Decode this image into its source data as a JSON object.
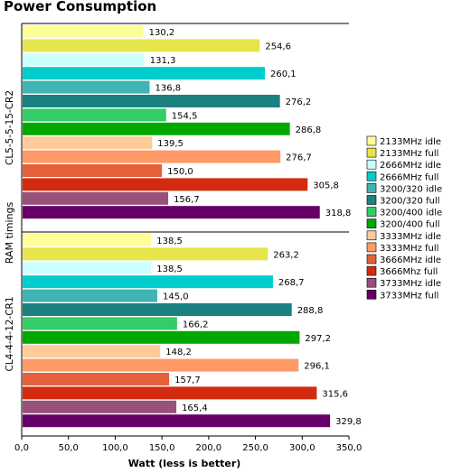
{
  "chart_data": {
    "type": "bar",
    "orientation": "horizontal",
    "title": "Power Consumption",
    "xlabel": "Watt (less is better)",
    "ylabel": "RAM timings",
    "xlim": [
      0,
      350
    ],
    "xticks": [
      "0,0",
      "50,0",
      "100,0",
      "150,0",
      "200,0",
      "250,0",
      "300,0",
      "350,0"
    ],
    "grid": false,
    "legend_position": "right",
    "groups": [
      {
        "label": "CL5-5-5-15-CR2",
        "bars": [
          {
            "series": "2133MHz idle",
            "value": 130.2,
            "label": "130,2"
          },
          {
            "series": "2133MHz full",
            "value": 254.6,
            "label": "254,6"
          },
          {
            "series": "2666MHz idle",
            "value": 131.3,
            "label": "131,3"
          },
          {
            "series": "2666MHz full",
            "value": 260.1,
            "label": "260,1"
          },
          {
            "series": "3200/320 idle",
            "value": 136.8,
            "label": "136,8"
          },
          {
            "series": "3200/320 full",
            "value": 276.2,
            "label": "276,2"
          },
          {
            "series": "3200/400 idle",
            "value": 154.5,
            "label": "154,5"
          },
          {
            "series": "3200/400 full",
            "value": 286.8,
            "label": "286,8"
          },
          {
            "series": "3333MHz idle",
            "value": 139.5,
            "label": "139,5"
          },
          {
            "series": "3333MHz full",
            "value": 276.7,
            "label": "276,7"
          },
          {
            "series": "3666MHz idle",
            "value": 150.0,
            "label": "150,0"
          },
          {
            "series": "3666Mhz full",
            "value": 305.8,
            "label": "305,8"
          },
          {
            "series": "3733MHz idle",
            "value": 156.7,
            "label": "156,7"
          },
          {
            "series": "3733MHz full",
            "value": 318.8,
            "label": "318,8"
          }
        ]
      },
      {
        "label": "CL4-4-4-12-CR1",
        "bars": [
          {
            "series": "2133MHz idle",
            "value": 138.5,
            "label": "138,5"
          },
          {
            "series": "2133MHz full",
            "value": 263.2,
            "label": "263,2"
          },
          {
            "series": "2666MHz idle",
            "value": 138.5,
            "label": "138,5"
          },
          {
            "series": "2666MHz full",
            "value": 268.7,
            "label": "268,7"
          },
          {
            "series": "3200/320 idle",
            "value": 145.0,
            "label": "145,0"
          },
          {
            "series": "3200/320 full",
            "value": 288.8,
            "label": "288,8"
          },
          {
            "series": "3200/400 idle",
            "value": 166.2,
            "label": "166,2"
          },
          {
            "series": "3200/400 full",
            "value": 297.2,
            "label": "297,2"
          },
          {
            "series": "3333MHz idle",
            "value": 148.2,
            "label": "148,2"
          },
          {
            "series": "3333MHz full",
            "value": 296.1,
            "label": "296,1"
          },
          {
            "series": "3666MHz idle",
            "value": 157.7,
            "label": "157,7"
          },
          {
            "series": "3666Mhz full",
            "value": 315.6,
            "label": "315,6"
          },
          {
            "series": "3733MHz idle",
            "value": 165.4,
            "label": "165,4"
          },
          {
            "series": "3733MHz full",
            "value": 329.8,
            "label": "329,8"
          }
        ]
      }
    ],
    "legend": [
      {
        "name": "2133MHz idle",
        "color": "#ffff99"
      },
      {
        "name": "2133MHz full",
        "color": "#e6e64c"
      },
      {
        "name": "2666MHz idle",
        "color": "#ccffff"
      },
      {
        "name": "2666MHz full",
        "color": "#00cccc"
      },
      {
        "name": "3200/320 idle",
        "color": "#40b3b3"
      },
      {
        "name": "3200/320 full",
        "color": "#1a8080"
      },
      {
        "name": "3200/400 idle",
        "color": "#33cc66"
      },
      {
        "name": "3200/400 full",
        "color": "#00a800"
      },
      {
        "name": "3333MHz idle",
        "color": "#ffcc99"
      },
      {
        "name": "3333MHz full",
        "color": "#ff9966"
      },
      {
        "name": "3666MHz idle",
        "color": "#e6603c"
      },
      {
        "name": "3666Mhz full",
        "color": "#d42a10"
      },
      {
        "name": "3733MHz idle",
        "color": "#99507a"
      },
      {
        "name": "3733MHz full",
        "color": "#660066"
      }
    ]
  }
}
